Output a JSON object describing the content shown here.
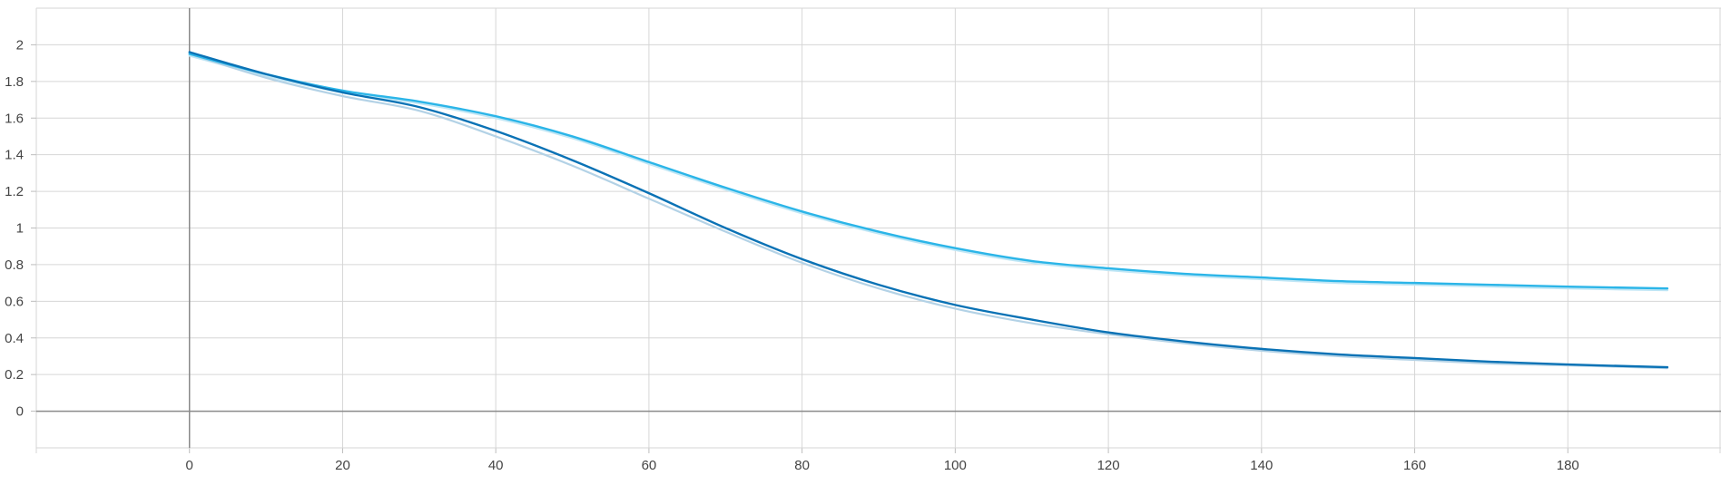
{
  "chart_data": {
    "type": "line",
    "title": "",
    "xlabel": "",
    "ylabel": "",
    "xlim": [
      -20,
      200
    ],
    "ylim": [
      -0.2,
      2.2
    ],
    "x_ticks": [
      0,
      20,
      40,
      60,
      80,
      100,
      120,
      140,
      160,
      180
    ],
    "y_ticks": [
      0,
      0.2,
      0.4,
      0.6,
      0.8,
      1,
      1.2,
      1.4,
      1.6,
      1.8,
      2
    ],
    "x_tick_labels": [
      "0",
      "20",
      "40",
      "60",
      "80",
      "100",
      "120",
      "140",
      "160",
      "180"
    ],
    "y_tick_labels": [
      "0",
      "0.2",
      "0.4",
      "0.6",
      "0.8",
      "1",
      "1.2",
      "1.4",
      "1.6",
      "1.8",
      "2"
    ],
    "grid": true,
    "legend": "none",
    "series": [
      {
        "color": "#2bb5e8",
        "raw_color": "#bfe6f5",
        "x": [
          0,
          10,
          20,
          30,
          40,
          50,
          60,
          70,
          80,
          90,
          100,
          110,
          120,
          130,
          140,
          150,
          160,
          170,
          180,
          193
        ],
        "values": [
          1.95,
          1.84,
          1.75,
          1.69,
          1.61,
          1.5,
          1.36,
          1.22,
          1.09,
          0.98,
          0.89,
          0.82,
          0.78,
          0.75,
          0.73,
          0.71,
          0.7,
          0.69,
          0.68,
          0.67
        ],
        "raw_values": [
          1.94,
          1.83,
          1.74,
          1.68,
          1.6,
          1.49,
          1.35,
          1.21,
          1.08,
          0.97,
          0.88,
          0.81,
          0.77,
          0.74,
          0.72,
          0.7,
          0.69,
          0.68,
          0.67,
          0.66
        ]
      },
      {
        "color": "#0a72b5",
        "raw_color": "#b3d2e6",
        "x": [
          0,
          10,
          20,
          30,
          40,
          50,
          60,
          70,
          80,
          90,
          100,
          110,
          120,
          130,
          140,
          150,
          160,
          170,
          180,
          193
        ],
        "values": [
          1.96,
          1.84,
          1.74,
          1.66,
          1.53,
          1.37,
          1.19,
          1.0,
          0.83,
          0.69,
          0.58,
          0.5,
          0.43,
          0.38,
          0.34,
          0.31,
          0.29,
          0.27,
          0.255,
          0.24
        ],
        "raw_values": [
          1.95,
          1.82,
          1.72,
          1.64,
          1.5,
          1.34,
          1.16,
          0.98,
          0.81,
          0.67,
          0.56,
          0.48,
          0.42,
          0.37,
          0.33,
          0.3,
          0.28,
          0.26,
          0.25,
          0.235
        ]
      }
    ]
  }
}
